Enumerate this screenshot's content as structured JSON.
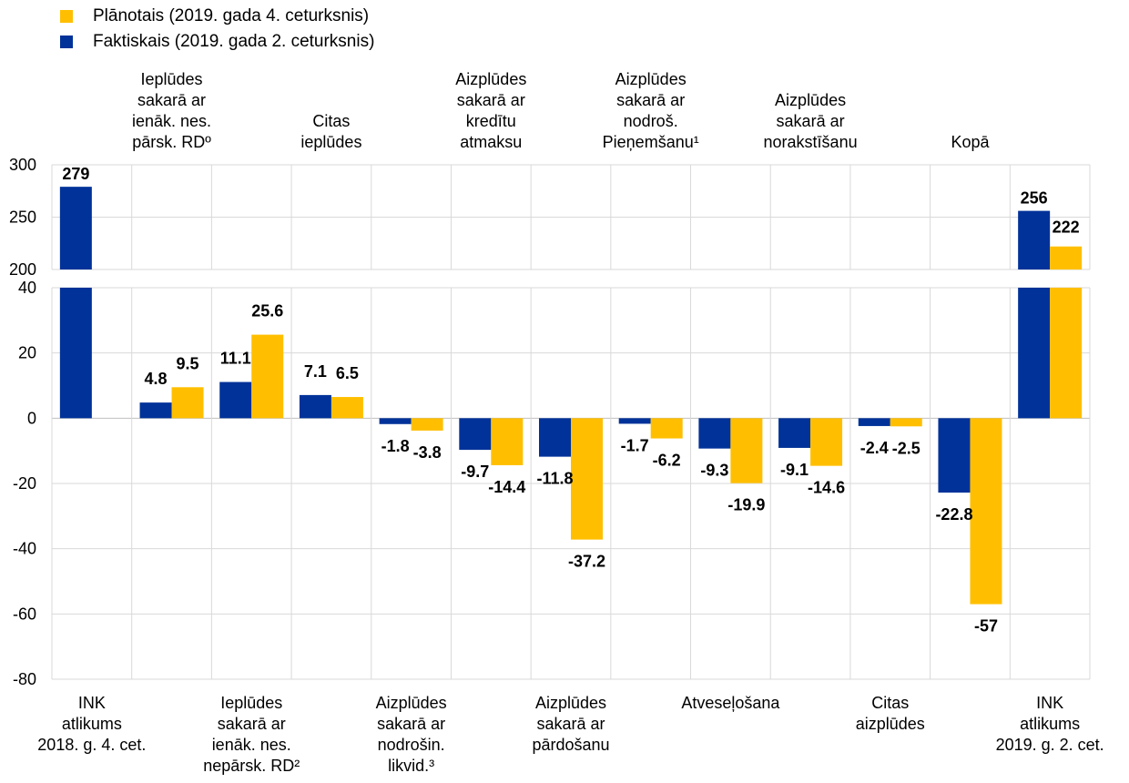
{
  "legend": {
    "planned": "Plānotais (2019. gada 4. ceturksnis)",
    "actual": "Faktiskais (2019. gada 2. ceturksnis)"
  },
  "colors": {
    "actual": "#003299",
    "planned": "#ffbf00",
    "grid": "#d9d9d9"
  },
  "chart_data": {
    "type": "bar",
    "subtype": "waterfall-style grouped bar with broken y-axis",
    "categories": [
      "INK atlikums 2018. g. 4. cet.",
      "Ieplūdes sakarā ar ienāk. nes. pārsk. RD⁰",
      "Ieplūdes sakarā ar ienāk. nes. nepārsk. RD²",
      "Citas ieplūdes",
      "Aizplūdes sakarā ar nodrošin. likvid.³",
      "Aizplūdes sakarā ar kredītu atmaksu",
      "Aizplūdes sakarā ar pārdošanu",
      "Aizplūdes sakarā ar nodroš. Pieņemšanu¹",
      "Atveseļošana",
      "Aizplūdes sakarā ar norakstīšanu",
      "Citas aizplūdes",
      "Kopā",
      "INK atlikums 2019. g. 2. cet."
    ],
    "top_labels": [
      "",
      "Ieplūdes\nsakarā ar\nienāk. nes.\npārsk. RDº",
      "",
      "Citas\nieplūdes",
      "",
      "Aizplūdes\nsakarā ar\nkredītu\natmaksu",
      "",
      "Aizplūdes\nsakarā ar\nnodroš.\nPieņemšanu¹",
      "",
      "Aizplūdes\nsakarā ar\nnorakstīšanu",
      "",
      "Kopā",
      ""
    ],
    "bottom_labels": [
      "INK\natlikums\n2018. g. 4. cet.",
      "",
      "Ieplūdes\nsakarā ar\nienāk. nes.\nnepārsk. RD²",
      "",
      "Aizplūdes\nsakarā ar\nnodrošin.\nlikvid.³",
      "",
      "Aizplūdes\nsakarā ar\npārdošanu",
      "",
      "Atveseļošana",
      "",
      "Citas\naizplūdes",
      "",
      "INK\natlikums\n2019. g. 2. cet."
    ],
    "series": [
      {
        "name": "Faktiskais (2019. gada 2. ceturksnis)",
        "color": "#003299",
        "values": [
          279,
          4.8,
          11.1,
          7.1,
          -1.8,
          -9.7,
          -11.8,
          -1.7,
          -9.3,
          -9.1,
          -2.4,
          -22.8,
          256
        ],
        "labels": [
          "279",
          "4.8",
          "11.1",
          "7.1",
          "-1.8",
          "-9.7",
          "-11.8",
          "-1.7",
          "-9.3",
          "-9.1",
          "-2.4",
          "-22.8",
          "256"
        ]
      },
      {
        "name": "Plānotais (2019. gada 4. ceturksnis)",
        "color": "#ffbf00",
        "values": [
          null,
          9.5,
          25.6,
          6.5,
          -3.8,
          -14.4,
          -37.2,
          -6.2,
          -19.9,
          -14.6,
          -2.5,
          -57,
          222
        ],
        "labels": [
          "",
          "9.5",
          "25.6",
          "6.5",
          "-3.8",
          "-14.4",
          "-37.2",
          "-6.2",
          "-19.9",
          "-14.6",
          "-2.5",
          "-57",
          "222"
        ]
      }
    ],
    "upper_axis": {
      "ylim": [
        200,
        300
      ],
      "ticks": [
        "200",
        "250",
        "300"
      ]
    },
    "lower_axis": {
      "ylim": [
        -80,
        40
      ],
      "ticks": [
        "-80",
        "-60",
        "-40",
        "-20",
        "0",
        "20",
        "40"
      ]
    },
    "grid": true,
    "legend_position": "top-left"
  }
}
